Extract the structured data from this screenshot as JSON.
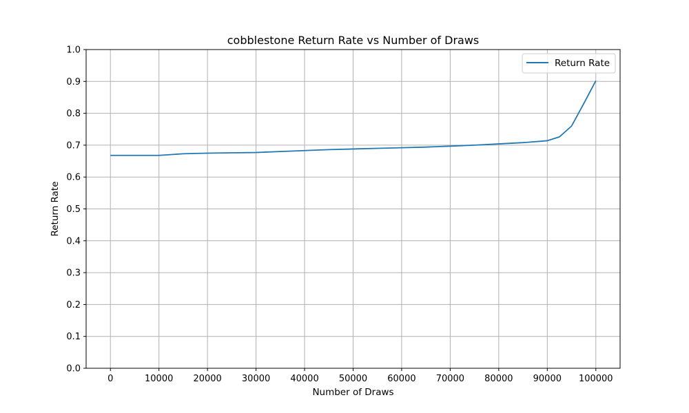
{
  "chart_data": {
    "type": "line",
    "title": "cobblestone Return Rate vs Number of Draws",
    "xlabel": "Number of Draws",
    "ylabel": "Return Rate",
    "xlim": [
      -5000,
      105000
    ],
    "ylim": [
      0.0,
      1.0
    ],
    "xticks": [
      0,
      10000,
      20000,
      30000,
      40000,
      50000,
      60000,
      70000,
      80000,
      90000,
      100000
    ],
    "yticks": [
      0.0,
      0.1,
      0.2,
      0.3,
      0.4,
      0.5,
      0.6,
      0.7,
      0.8,
      0.9,
      1.0
    ],
    "xtick_labels": [
      "0",
      "10000",
      "20000",
      "30000",
      "40000",
      "50000",
      "60000",
      "70000",
      "80000",
      "90000",
      "100000"
    ],
    "ytick_labels": [
      "0.0",
      "0.1",
      "0.2",
      "0.3",
      "0.4",
      "0.5",
      "0.6",
      "0.7",
      "0.8",
      "0.9",
      "1.0"
    ],
    "grid": true,
    "legend_position": "top-right",
    "series": [
      {
        "name": "Return Rate",
        "color": "#1f77b4",
        "x": [
          0,
          5000,
          10000,
          15000,
          20000,
          25000,
          30000,
          35000,
          40000,
          45000,
          50000,
          55000,
          60000,
          65000,
          70000,
          75000,
          80000,
          85000,
          90000,
          92500,
          95000,
          97500,
          100000
        ],
        "y": [
          0.668,
          0.668,
          0.668,
          0.673,
          0.675,
          0.676,
          0.677,
          0.68,
          0.683,
          0.686,
          0.688,
          0.69,
          0.692,
          0.694,
          0.697,
          0.7,
          0.704,
          0.708,
          0.714,
          0.726,
          0.76,
          0.83,
          0.902
        ]
      }
    ]
  }
}
